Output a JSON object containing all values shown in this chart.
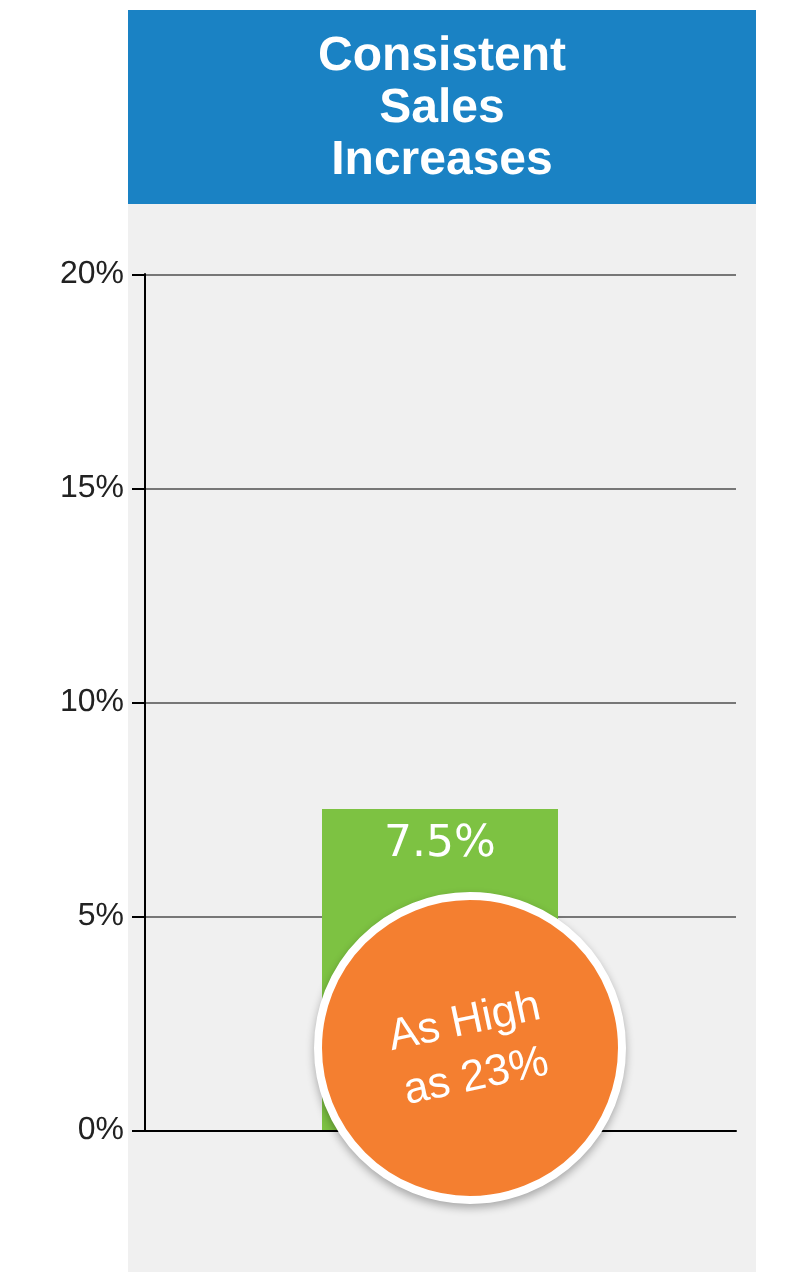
{
  "chart_data": {
    "type": "bar",
    "title": "Consistent Sales Increases",
    "categories": [
      null
    ],
    "values": [
      7.5
    ],
    "color": "#7dc242",
    "value_labels": [
      "7.5%"
    ],
    "ylim": [
      0,
      20
    ],
    "yticks": [
      {
        "value": 0,
        "label": "0%"
      },
      {
        "value": 5,
        "label": "5%"
      },
      {
        "value": 10,
        "label": "10%"
      },
      {
        "value": 15,
        "label": "15%"
      },
      {
        "value": 20,
        "label": "20%"
      }
    ],
    "grid": "y",
    "annotations": [
      "As High as 23%"
    ]
  }
}
